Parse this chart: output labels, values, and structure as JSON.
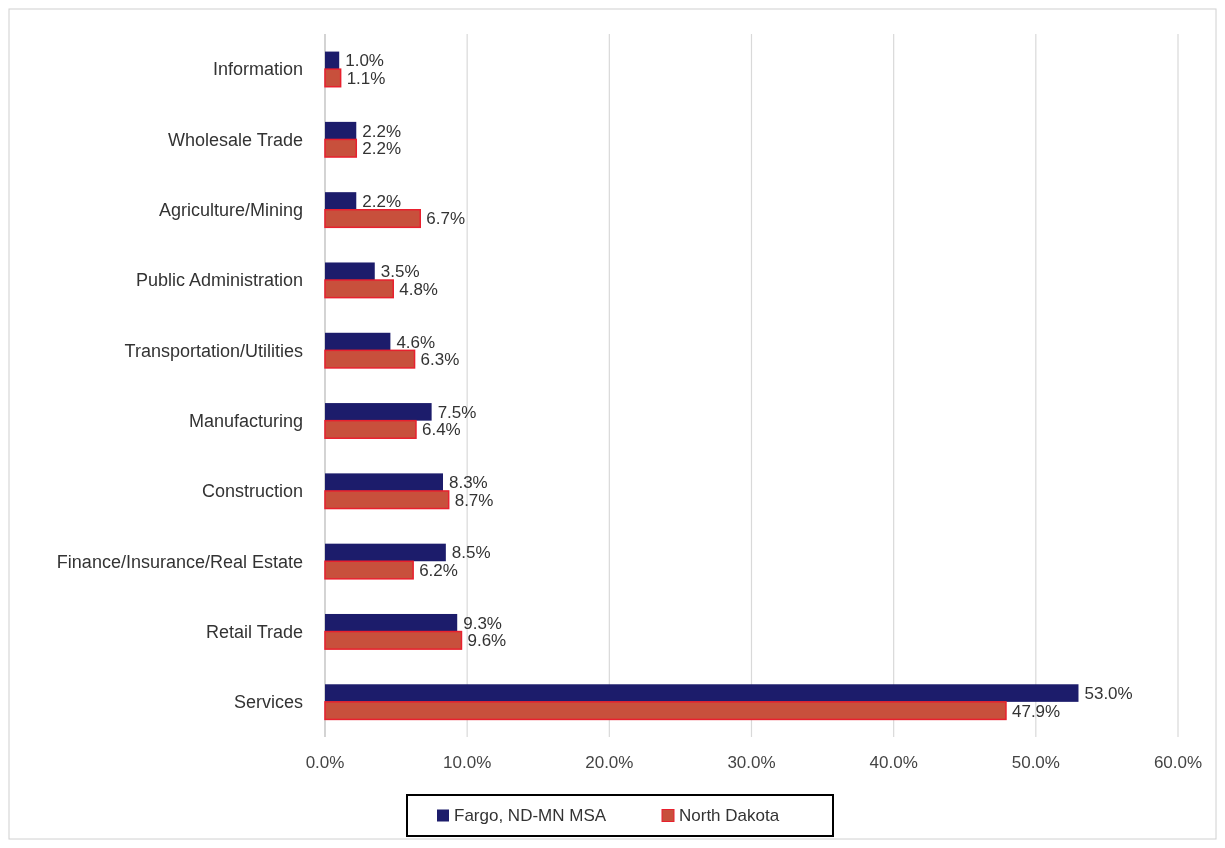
{
  "chart_data": {
    "type": "bar",
    "orientation": "horizontal",
    "categories": [
      "Information",
      "Wholesale Trade",
      "Agriculture/Mining",
      "Public Administration",
      "Transportation/Utilities",
      "Manufacturing",
      "Construction",
      "Finance/Insurance/Real Estate",
      "Retail Trade",
      "Services"
    ],
    "series": [
      {
        "name": "Fargo, ND-MN MSA",
        "color": "#1c1c6b",
        "values": [
          1.0,
          2.2,
          2.2,
          3.5,
          4.6,
          7.5,
          8.3,
          8.5,
          9.3,
          53.0
        ],
        "value_labels": [
          "1.0%",
          "2.2%",
          "2.2%",
          "3.5%",
          "4.6%",
          "7.5%",
          "8.3%",
          "8.5%",
          "9.3%",
          "53.0%"
        ]
      },
      {
        "name": "North Dakota",
        "color": "#c8503c",
        "values": [
          1.1,
          2.2,
          6.7,
          4.8,
          6.3,
          6.4,
          8.7,
          6.2,
          9.6,
          47.9
        ],
        "value_labels": [
          "1.1%",
          "2.2%",
          "6.7%",
          "4.8%",
          "6.3%",
          "6.4%",
          "8.7%",
          "6.2%",
          "9.6%",
          "47.9%"
        ]
      }
    ],
    "xlim": [
      0,
      60
    ],
    "xticks": [
      {
        "value": 0,
        "label": "0.0%"
      },
      {
        "value": 10,
        "label": "10.0%"
      },
      {
        "value": 20,
        "label": "20.0%"
      },
      {
        "value": 30,
        "label": "30.0%"
      },
      {
        "value": 40,
        "label": "40.0%"
      },
      {
        "value": 50,
        "label": "50.0%"
      },
      {
        "value": 60,
        "label": "60.0%"
      }
    ],
    "grid": "x",
    "legend": "bottom"
  }
}
